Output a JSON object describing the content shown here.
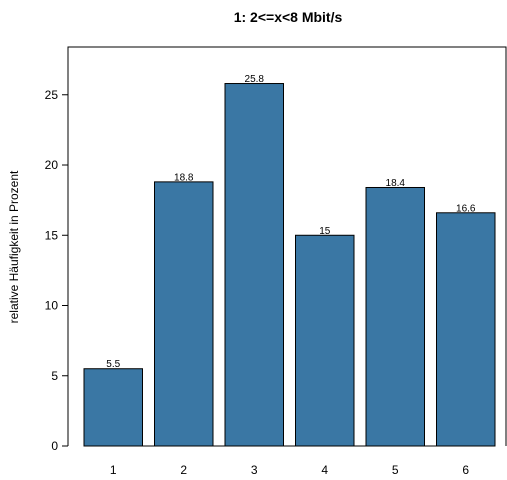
{
  "chart_data": {
    "type": "bar",
    "title": "1: 2<=x<8 Mbit/s",
    "xlabel": "",
    "ylabel": "relative Häufigkeit in Prozent",
    "categories": [
      "1",
      "2",
      "3",
      "4",
      "5",
      "6"
    ],
    "values": [
      5.5,
      18.8,
      25.8,
      15,
      18.4,
      16.6
    ],
    "value_labels": [
      "5.5",
      "18.8",
      "25.8",
      "15",
      "18.4",
      "16.6"
    ],
    "ylim": [
      0,
      28.4
    ],
    "yticks": [
      0,
      5,
      10,
      15,
      20,
      25
    ],
    "bar_color": "#3a77a4",
    "bar_edge_color": "#000000",
    "grid": false,
    "legend": "none"
  }
}
